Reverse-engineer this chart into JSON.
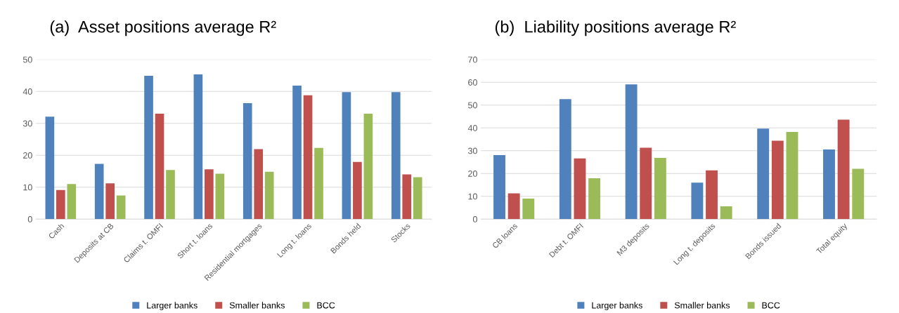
{
  "chart_data": [
    {
      "type": "bar",
      "title": "(a)  Asset positions average R²",
      "categories": [
        "Cash",
        "Deposits at CB",
        "Claims t. OMFI",
        "Short t. loans",
        "Residential mortgages",
        "Long t. loans",
        "Bonds held",
        "Stocks"
      ],
      "series": [
        {
          "name": "Larger banks",
          "color": "#4f81bd",
          "values": [
            32.1,
            17.3,
            44.9,
            45.3,
            36.3,
            41.8,
            39.8,
            39.8
          ]
        },
        {
          "name": "Smaller banks",
          "color": "#c0504d",
          "values": [
            9.1,
            11.2,
            33.0,
            15.6,
            21.9,
            38.8,
            17.9,
            14.0
          ]
        },
        {
          "name": "BCC",
          "color": "#9bbb59",
          "values": [
            11.0,
            7.4,
            15.4,
            14.2,
            14.8,
            22.3,
            33.0,
            13.1
          ]
        }
      ],
      "ylim": [
        0,
        50
      ],
      "yticks": [
        0,
        10,
        20,
        30,
        40,
        50
      ],
      "grid": "y",
      "legend": "bottom"
    },
    {
      "type": "bar",
      "title": "(b)  Liability positions average R²",
      "categories": [
        "CB loans",
        "Debt t. OMFI",
        "M3 deposits",
        "Long t. deposits",
        "Bonds issued",
        "Total equity"
      ],
      "series": [
        {
          "name": "Larger banks",
          "color": "#4f81bd",
          "values": [
            28.1,
            52.6,
            59.1,
            16.0,
            39.7,
            30.5
          ]
        },
        {
          "name": "Smaller banks",
          "color": "#c0504d",
          "values": [
            11.3,
            26.6,
            31.3,
            21.4,
            34.4,
            43.6
          ]
        },
        {
          "name": "BCC",
          "color": "#9bbb59",
          "values": [
            9.0,
            17.9,
            26.8,
            5.6,
            38.2,
            22.1
          ]
        }
      ],
      "ylim": [
        0,
        70
      ],
      "yticks": [
        0,
        10,
        20,
        30,
        40,
        50,
        60,
        70
      ],
      "grid": "y",
      "legend": "bottom"
    }
  ]
}
